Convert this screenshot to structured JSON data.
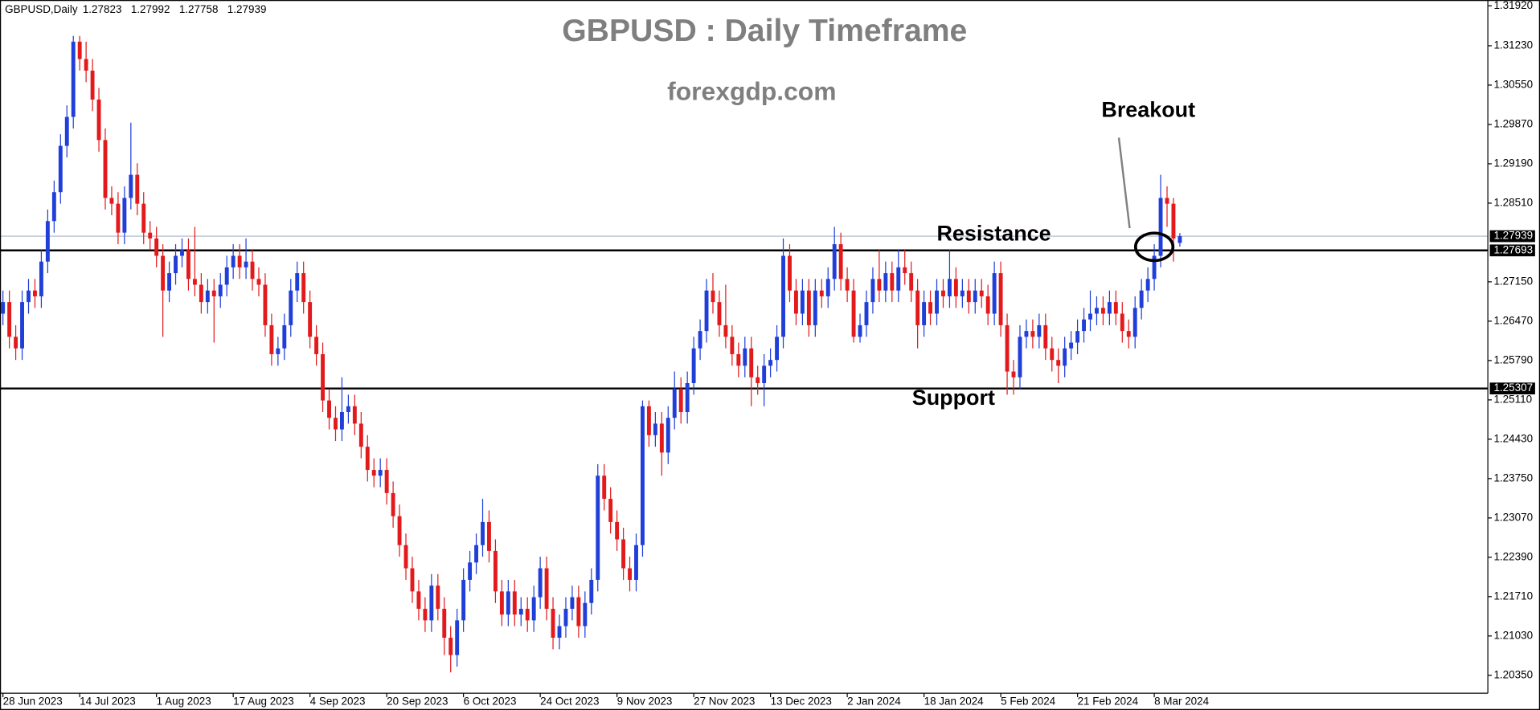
{
  "chart_data": {
    "type": "candlestick",
    "symbol": "GBPUSD,Daily",
    "title": "GBPUSD : Daily Timeframe",
    "subtitle": "forexgdp.com",
    "annotations": {
      "breakout": "Breakout",
      "resistance": "Resistance",
      "support": "Support"
    },
    "up_color": "#1f3fd8",
    "down_color": "#e31a1c",
    "grid": false,
    "resistance_level": 1.27693,
    "support_level": 1.25307,
    "ylim": [
      1.2004,
      1.3202
    ],
    "yticks": [
      {
        "value": 1.3192,
        "label": "1.31920"
      },
      {
        "value": 1.3123,
        "label": "1.31230"
      },
      {
        "value": 1.3055,
        "label": "1.30550"
      },
      {
        "value": 1.2987,
        "label": "1.29870"
      },
      {
        "value": 1.2919,
        "label": "1.29190"
      },
      {
        "value": 1.2851,
        "label": "1.28510"
      },
      {
        "value": 1.2715,
        "label": "1.27150"
      },
      {
        "value": 1.2647,
        "label": "1.26470"
      },
      {
        "value": 1.2579,
        "label": "1.25790"
      },
      {
        "value": 1.2511,
        "label": "1.25110"
      },
      {
        "value": 1.2443,
        "label": "1.24430"
      },
      {
        "value": 1.2375,
        "label": "1.23750"
      },
      {
        "value": 1.2307,
        "label": "1.23070"
      },
      {
        "value": 1.2239,
        "label": "1.22390"
      },
      {
        "value": 1.2171,
        "label": "1.21710"
      },
      {
        "value": 1.2103,
        "label": "1.21030"
      },
      {
        "value": 1.2035,
        "label": "1.20350"
      }
    ],
    "categories": [
      "28 Jun 2023",
      null,
      null,
      null,
      null,
      null,
      null,
      null,
      null,
      null,
      null,
      null,
      "14 Jul 2023",
      null,
      null,
      null,
      null,
      null,
      null,
      null,
      null,
      null,
      null,
      null,
      "1 Aug 2023",
      null,
      null,
      null,
      null,
      null,
      null,
      null,
      null,
      null,
      null,
      null,
      "17 Aug 2023",
      null,
      null,
      null,
      null,
      null,
      null,
      null,
      null,
      null,
      null,
      null,
      "4 Sep 2023",
      null,
      null,
      null,
      null,
      null,
      null,
      null,
      null,
      null,
      null,
      null,
      "20 Sep 2023",
      null,
      null,
      null,
      null,
      null,
      null,
      null,
      null,
      null,
      null,
      null,
      "6 Oct 2023",
      null,
      null,
      null,
      null,
      null,
      null,
      null,
      null,
      null,
      null,
      null,
      "24 Oct 2023",
      null,
      null,
      null,
      null,
      null,
      null,
      null,
      null,
      null,
      null,
      null,
      "9 Nov 2023",
      null,
      null,
      null,
      null,
      null,
      null,
      null,
      null,
      null,
      null,
      null,
      "27 Nov 2023",
      null,
      null,
      null,
      null,
      null,
      null,
      null,
      null,
      null,
      null,
      null,
      "13 Dec 2023",
      null,
      null,
      null,
      null,
      null,
      null,
      null,
      null,
      null,
      null,
      null,
      "2 Jan 2024",
      null,
      null,
      null,
      null,
      null,
      null,
      null,
      null,
      null,
      null,
      null,
      "18 Jan 2024",
      null,
      null,
      null,
      null,
      null,
      null,
      null,
      null,
      null,
      null,
      null,
      "5 Feb 2024",
      null,
      null,
      null,
      null,
      null,
      null,
      null,
      null,
      null,
      null,
      null,
      "21 Feb 2024",
      null,
      null,
      null,
      null,
      null,
      null,
      null,
      null,
      null,
      null,
      null,
      "8 Mar 2024",
      null,
      null,
      null,
      null
    ],
    "open": [
      1.266,
      1.268,
      1.262,
      1.26,
      1.268,
      1.27,
      1.269,
      1.275,
      1.282,
      1.287,
      1.295,
      1.3,
      1.313,
      1.31,
      1.308,
      1.303,
      1.296,
      1.286,
      1.285,
      1.28,
      1.286,
      1.29,
      1.285,
      1.28,
      1.279,
      1.276,
      1.27,
      1.273,
      1.276,
      1.277,
      1.272,
      1.271,
      1.268,
      1.27,
      1.269,
      1.271,
      1.274,
      1.276,
      1.274,
      1.275,
      1.272,
      1.271,
      1.264,
      1.259,
      1.26,
      1.264,
      1.27,
      1.273,
      1.268,
      1.262,
      1.259,
      1.251,
      1.248,
      1.246,
      1.249,
      1.25,
      1.247,
      1.243,
      1.239,
      1.238,
      1.239,
      1.235,
      1.231,
      1.226,
      1.222,
      1.218,
      1.215,
      1.213,
      1.219,
      1.215,
      1.21,
      1.207,
      1.213,
      1.22,
      1.223,
      1.226,
      1.23,
      1.225,
      1.218,
      1.214,
      1.218,
      1.214,
      1.215,
      1.213,
      1.217,
      1.222,
      1.215,
      1.21,
      1.212,
      1.215,
      1.217,
      1.212,
      1.216,
      1.22,
      1.238,
      1.234,
      1.23,
      1.227,
      1.222,
      1.22,
      1.226,
      1.25,
      1.245,
      1.247,
      1.242,
      1.248,
      1.253,
      1.249,
      1.254,
      1.26,
      1.263,
      1.27,
      1.268,
      1.264,
      1.262,
      1.259,
      1.257,
      1.26,
      1.255,
      1.254,
      1.257,
      1.258,
      1.262,
      1.276,
      1.27,
      1.266,
      1.27,
      1.264,
      1.27,
      1.269,
      1.272,
      1.278,
      1.272,
      1.27,
      1.262,
      1.264,
      1.268,
      1.272,
      1.27,
      1.273,
      1.27,
      1.274,
      1.273,
      1.27,
      1.264,
      1.268,
      1.266,
      1.27,
      1.269,
      1.272,
      1.269,
      1.27,
      1.268,
      1.27,
      1.269,
      1.266,
      1.273,
      1.264,
      1.256,
      1.255,
      1.262,
      1.263,
      1.262,
      1.264,
      1.26,
      1.258,
      1.257,
      1.26,
      1.261,
      1.263,
      1.265,
      1.266,
      1.267,
      1.266,
      1.268,
      1.266,
      1.263,
      1.262,
      1.267,
      1.27,
      1.272,
      1.276,
      1.286,
      1.285,
      1.27823
    ],
    "high": [
      1.27,
      1.27,
      1.264,
      1.27,
      1.272,
      1.272,
      1.277,
      1.284,
      1.289,
      1.297,
      1.302,
      1.314,
      1.314,
      1.313,
      1.31,
      1.305,
      1.298,
      1.288,
      1.287,
      1.288,
      1.299,
      1.292,
      1.287,
      1.282,
      1.281,
      1.278,
      1.275,
      1.278,
      1.279,
      1.279,
      1.281,
      1.273,
      1.272,
      1.272,
      1.273,
      1.276,
      1.278,
      1.278,
      1.279,
      1.277,
      1.274,
      1.273,
      1.266,
      1.262,
      1.266,
      1.272,
      1.275,
      1.275,
      1.27,
      1.264,
      1.261,
      1.253,
      1.25,
      1.255,
      1.252,
      1.252,
      1.249,
      1.245,
      1.241,
      1.241,
      1.241,
      1.237,
      1.233,
      1.228,
      1.224,
      1.22,
      1.217,
      1.221,
      1.221,
      1.217,
      1.212,
      1.215,
      1.222,
      1.225,
      1.228,
      1.234,
      1.232,
      1.227,
      1.22,
      1.22,
      1.22,
      1.217,
      1.217,
      1.219,
      1.224,
      1.224,
      1.217,
      1.214,
      1.217,
      1.219,
      1.219,
      1.218,
      1.222,
      1.24,
      1.24,
      1.236,
      1.232,
      1.229,
      1.224,
      1.228,
      1.251,
      1.251,
      1.249,
      1.249,
      1.25,
      1.256,
      1.255,
      1.256,
      1.262,
      1.265,
      1.272,
      1.273,
      1.27,
      1.271,
      1.264,
      1.261,
      1.262,
      1.262,
      1.257,
      1.259,
      1.26,
      1.264,
      1.279,
      1.278,
      1.272,
      1.272,
      1.272,
      1.272,
      1.272,
      1.274,
      1.281,
      1.28,
      1.274,
      1.272,
      1.266,
      1.27,
      1.274,
      1.277,
      1.275,
      1.275,
      1.277,
      1.277,
      1.275,
      1.272,
      1.27,
      1.27,
      1.272,
      1.272,
      1.277,
      1.274,
      1.272,
      1.272,
      1.272,
      1.272,
      1.271,
      1.275,
      1.275,
      1.266,
      1.258,
      1.264,
      1.265,
      1.265,
      1.266,
      1.266,
      1.262,
      1.26,
      1.262,
      1.263,
      1.265,
      1.267,
      1.27,
      1.269,
      1.269,
      1.27,
      1.27,
      1.268,
      1.265,
      1.269,
      1.272,
      1.274,
      1.278,
      1.29,
      1.288,
      1.286,
      1.27992
    ],
    "low": [
      1.264,
      1.26,
      1.258,
      1.258,
      1.266,
      1.267,
      1.267,
      1.273,
      1.28,
      1.285,
      1.293,
      1.298,
      1.308,
      1.306,
      1.301,
      1.294,
      1.284,
      1.283,
      1.278,
      1.278,
      1.284,
      1.283,
      1.278,
      1.277,
      1.274,
      1.262,
      1.268,
      1.271,
      1.274,
      1.27,
      1.269,
      1.266,
      1.266,
      1.261,
      1.267,
      1.269,
      1.272,
      1.272,
      1.272,
      1.27,
      1.269,
      1.262,
      1.257,
      1.257,
      1.258,
      1.262,
      1.268,
      1.266,
      1.26,
      1.257,
      1.249,
      1.246,
      1.244,
      1.244,
      1.247,
      1.245,
      1.241,
      1.237,
      1.236,
      1.236,
      1.233,
      1.229,
      1.224,
      1.22,
      1.216,
      1.213,
      1.211,
      1.211,
      1.213,
      1.207,
      1.204,
      1.205,
      1.211,
      1.218,
      1.221,
      1.224,
      1.223,
      1.216,
      1.212,
      1.212,
      1.212,
      1.212,
      1.211,
      1.211,
      1.215,
      1.213,
      1.208,
      1.208,
      1.21,
      1.213,
      1.21,
      1.21,
      1.214,
      1.218,
      1.232,
      1.228,
      1.225,
      1.22,
      1.218,
      1.218,
      1.224,
      1.243,
      1.243,
      1.238,
      1.24,
      1.246,
      1.247,
      1.247,
      1.252,
      1.258,
      1.261,
      1.266,
      1.262,
      1.26,
      1.257,
      1.255,
      1.255,
      1.25,
      1.252,
      1.25,
      1.255,
      1.256,
      1.26,
      1.268,
      1.264,
      1.264,
      1.262,
      1.262,
      1.267,
      1.267,
      1.27,
      1.27,
      1.268,
      1.261,
      1.261,
      1.262,
      1.266,
      1.268,
      1.268,
      1.268,
      1.268,
      1.271,
      1.268,
      1.26,
      1.262,
      1.264,
      1.264,
      1.267,
      1.267,
      1.267,
      1.267,
      1.266,
      1.266,
      1.267,
      1.264,
      1.264,
      1.262,
      1.252,
      1.252,
      1.253,
      1.26,
      1.26,
      1.26,
      1.258,
      1.256,
      1.254,
      1.255,
      1.258,
      1.259,
      1.261,
      1.263,
      1.264,
      1.264,
      1.264,
      1.264,
      1.261,
      1.26,
      1.26,
      1.265,
      1.268,
      1.27,
      1.274,
      1.281,
      1.275,
      1.27758
    ],
    "close": [
      1.268,
      1.262,
      1.26,
      1.268,
      1.27,
      1.269,
      1.275,
      1.282,
      1.287,
      1.295,
      1.3,
      1.313,
      1.31,
      1.308,
      1.303,
      1.296,
      1.286,
      1.285,
      1.28,
      1.286,
      1.29,
      1.285,
      1.28,
      1.279,
      1.276,
      1.27,
      1.273,
      1.276,
      1.277,
      1.272,
      1.271,
      1.268,
      1.27,
      1.269,
      1.271,
      1.274,
      1.276,
      1.274,
      1.275,
      1.272,
      1.271,
      1.264,
      1.259,
      1.26,
      1.264,
      1.27,
      1.273,
      1.268,
      1.262,
      1.259,
      1.251,
      1.248,
      1.246,
      1.249,
      1.25,
      1.247,
      1.243,
      1.239,
      1.238,
      1.239,
      1.235,
      1.231,
      1.226,
      1.222,
      1.218,
      1.215,
      1.213,
      1.219,
      1.215,
      1.21,
      1.207,
      1.213,
      1.22,
      1.223,
      1.226,
      1.23,
      1.225,
      1.218,
      1.214,
      1.218,
      1.214,
      1.215,
      1.213,
      1.217,
      1.222,
      1.215,
      1.21,
      1.212,
      1.215,
      1.217,
      1.212,
      1.216,
      1.22,
      1.238,
      1.234,
      1.23,
      1.227,
      1.222,
      1.22,
      1.226,
      1.25,
      1.245,
      1.247,
      1.242,
      1.248,
      1.253,
      1.249,
      1.254,
      1.26,
      1.263,
      1.27,
      1.268,
      1.264,
      1.262,
      1.259,
      1.257,
      1.26,
      1.255,
      1.254,
      1.257,
      1.258,
      1.262,
      1.276,
      1.27,
      1.266,
      1.27,
      1.264,
      1.27,
      1.269,
      1.272,
      1.278,
      1.272,
      1.27,
      1.262,
      1.264,
      1.268,
      1.272,
      1.27,
      1.273,
      1.27,
      1.274,
      1.273,
      1.27,
      1.264,
      1.268,
      1.266,
      1.27,
      1.269,
      1.272,
      1.269,
      1.27,
      1.268,
      1.27,
      1.269,
      1.266,
      1.273,
      1.264,
      1.256,
      1.255,
      1.262,
      1.263,
      1.262,
      1.264,
      1.26,
      1.258,
      1.257,
      1.26,
      1.261,
      1.263,
      1.265,
      1.266,
      1.267,
      1.266,
      1.268,
      1.266,
      1.263,
      1.262,
      1.267,
      1.27,
      1.272,
      1.276,
      1.286,
      1.285,
      1.279,
      1.27939
    ]
  }
}
